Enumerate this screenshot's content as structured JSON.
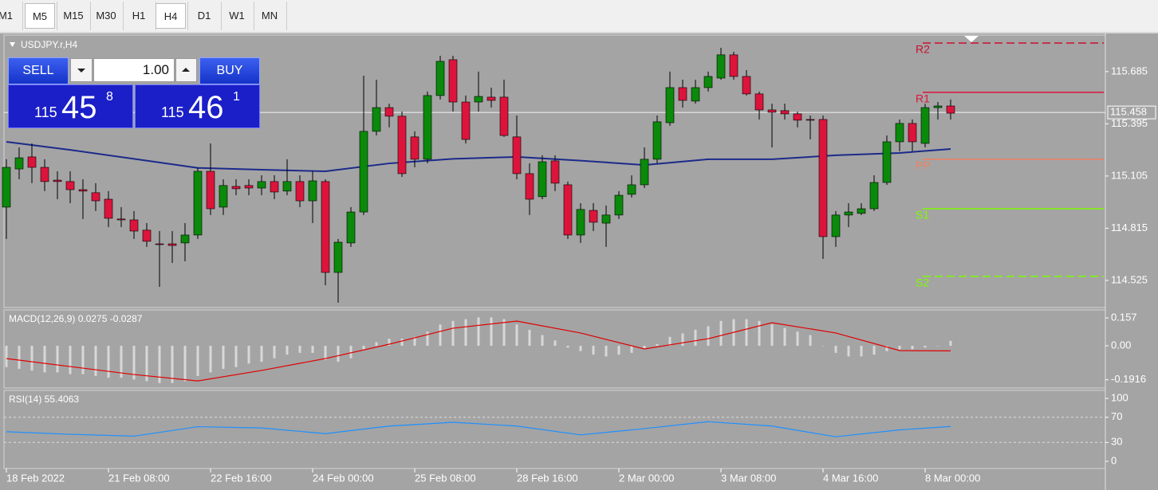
{
  "toolbar": {
    "timeframes": [
      "M1",
      "M5",
      "M15",
      "M30",
      "H1",
      "H4",
      "D1",
      "W1",
      "MN"
    ],
    "selected": [
      1,
      5
    ]
  },
  "trade_panel": {
    "sell": "SELL",
    "buy": "BUY",
    "lots": "1.00",
    "sell_price": {
      "big": "115",
      "main": "45",
      "small": "8"
    },
    "buy_price": {
      "big": "115",
      "main": "46",
      "small": "1"
    }
  },
  "chart_data": [
    {
      "type": "candlestick",
      "title": "USDJPY.r,H4",
      "categories": [
        "18 Feb 2022",
        null,
        null,
        null,
        null,
        null,
        null,
        null,
        "21 Feb 08:00",
        null,
        null,
        null,
        null,
        null,
        null,
        null,
        "22 Feb 16:00",
        null,
        null,
        null,
        null,
        null,
        null,
        null,
        "24 Feb 00:00",
        null,
        null,
        null,
        null,
        null,
        null,
        null,
        "25 Feb 08:00",
        null,
        null,
        null,
        null,
        null,
        null,
        null,
        "28 Feb 16:00",
        null,
        null,
        null,
        null,
        null,
        null,
        null,
        "2 Mar 00:00",
        null,
        null,
        null,
        null,
        null,
        null,
        null,
        "3 Mar 08:00",
        null,
        null,
        null,
        null,
        null,
        null,
        null,
        "4 Mar 16:00",
        null,
        null,
        null,
        null,
        null,
        null,
        null,
        "8 Mar 00:00",
        null,
        null
      ],
      "open": [
        114.932,
        115.144,
        115.211,
        115.153,
        115.082,
        115.074,
        115.029,
        115.012,
        114.976,
        114.866,
        114.861,
        114.804,
        114.728,
        114.728,
        114.733,
        114.777,
        115.131,
        114.932,
        115.047,
        115.052,
        115.038,
        115.074,
        115.021,
        115.074,
        114.967,
        115.074,
        114.569,
        114.733,
        114.905,
        115.353,
        115.485,
        115.437,
        115.322,
        115.198,
        115.552,
        115.751,
        115.516,
        115.516,
        115.543,
        115.543,
        115.322,
        115.118,
        114.99,
        115.189,
        115.056,
        114.777,
        114.914,
        114.843,
        114.888,
        115.003,
        115.056,
        115.198,
        115.401,
        115.596,
        115.521,
        115.596,
        115.649,
        115.778,
        115.658,
        115.561,
        115.472,
        115.468,
        115.45,
        115.419,
        115.419,
        114.768,
        114.888,
        114.897,
        114.923,
        115.069,
        115.295,
        115.397,
        115.286,
        115.485,
        115.494
      ],
      "high": [
        115.198,
        115.264,
        115.286,
        115.198,
        115.131,
        115.131,
        115.087,
        115.065,
        115.021,
        114.932,
        114.91,
        114.843,
        114.799,
        114.799,
        114.843,
        115.153,
        115.286,
        115.087,
        115.087,
        115.087,
        115.109,
        115.109,
        115.198,
        115.109,
        115.131,
        115.087,
        114.755,
        114.932,
        115.662,
        115.64,
        115.507,
        115.463,
        115.353,
        115.574,
        115.773,
        115.773,
        115.552,
        115.685,
        115.596,
        115.64,
        115.441,
        115.175,
        115.22,
        115.22,
        115.074,
        114.954,
        114.954,
        114.941,
        115.021,
        115.109,
        115.264,
        115.441,
        115.685,
        115.64,
        115.64,
        115.685,
        115.817,
        115.795,
        115.693,
        115.574,
        115.507,
        115.507,
        115.463,
        115.441,
        115.441,
        114.91,
        114.954,
        114.954,
        115.109,
        115.33,
        115.419,
        115.419,
        115.507,
        115.516,
        115.53
      ],
      "low": [
        114.755,
        115.087,
        115.065,
        115.021,
        114.976,
        114.954,
        114.866,
        114.91,
        114.821,
        114.821,
        114.755,
        114.711,
        114.489,
        114.622,
        114.631,
        114.755,
        114.888,
        114.888,
        114.998,
        114.998,
        114.998,
        114.976,
        114.998,
        114.932,
        114.843,
        114.498,
        114.401,
        114.711,
        114.888,
        115.33,
        115.375,
        115.1,
        115.153,
        115.175,
        115.53,
        115.463,
        115.286,
        115.463,
        115.485,
        115.322,
        115.087,
        114.888,
        114.976,
        115.021,
        114.755,
        114.733,
        114.799,
        114.711,
        114.866,
        114.985,
        115.038,
        115.175,
        115.384,
        115.485,
        115.507,
        115.574,
        115.64,
        115.64,
        115.552,
        115.419,
        115.264,
        115.419,
        115.375,
        115.308,
        114.644,
        114.711,
        114.821,
        114.888,
        114.91,
        115.056,
        115.242,
        115.242,
        115.264,
        115.419,
        115.419
      ],
      "close": [
        115.153,
        115.206,
        115.153,
        115.074,
        115.074,
        115.029,
        115.021,
        114.967,
        114.87,
        114.861,
        114.799,
        114.742,
        114.724,
        114.719,
        114.777,
        115.131,
        114.923,
        115.052,
        115.034,
        115.038,
        115.074,
        115.016,
        115.074,
        114.967,
        115.078,
        114.569,
        114.737,
        114.905,
        115.353,
        115.485,
        115.437,
        115.118,
        115.198,
        115.552,
        115.742,
        115.516,
        115.308,
        115.547,
        115.525,
        115.33,
        115.118,
        114.976,
        115.184,
        115.065,
        114.777,
        114.919,
        114.848,
        114.888,
        114.998,
        115.056,
        115.198,
        115.406,
        115.596,
        115.525,
        115.596,
        115.658,
        115.778,
        115.658,
        115.561,
        115.472,
        115.459,
        115.45,
        115.415,
        115.415,
        114.768,
        114.888,
        114.905,
        114.923,
        115.069,
        115.295,
        115.397,
        115.295,
        115.485,
        115.494,
        115.454
      ],
      "up_color": "#0a8a0a",
      "down_color": "#dc143c",
      "ylim": [
        114.374,
        115.888
      ],
      "yticks": [
        115.685,
        115.395,
        115.105,
        114.815,
        114.525
      ],
      "current_price": 115.458,
      "moving_average": {
        "color": "#1c2a8a",
        "x": [
          0,
          5,
          10,
          15,
          20,
          25,
          30,
          35,
          40,
          45,
          50,
          55,
          60,
          65,
          70,
          74
        ],
        "values": [
          115.295,
          115.25,
          115.2,
          115.15,
          115.14,
          115.131,
          115.175,
          115.2,
          115.211,
          115.19,
          115.166,
          115.198,
          115.198,
          115.22,
          115.233,
          115.255
        ]
      },
      "levels": [
        {
          "name": "R2",
          "value": 115.844,
          "color": "#c8102e",
          "dashed": true
        },
        {
          "name": "R1",
          "value": 115.57,
          "color": "#dc143c",
          "dashed": false
        },
        {
          "name": "PP",
          "value": 115.198,
          "color": "#f08060",
          "dashed": false
        },
        {
          "name": "S1",
          "value": 114.923,
          "color": "#7cfc00",
          "dashed": false
        },
        {
          "name": "S2",
          "value": 114.547,
          "color": "#7cfc00",
          "dashed": true
        }
      ]
    },
    {
      "type": "macd",
      "title": "MACD(12,26,9) 0.0275 -0.0287",
      "histogram": {
        "color": "#d8d8d8",
        "values": [
          -0.12,
          -0.13,
          -0.14,
          -0.15,
          -0.15,
          -0.16,
          -0.16,
          -0.17,
          -0.18,
          -0.18,
          -0.19,
          -0.2,
          -0.21,
          -0.21,
          -0.2,
          -0.17,
          -0.15,
          -0.13,
          -0.12,
          -0.1,
          -0.09,
          -0.07,
          -0.05,
          -0.04,
          -0.04,
          -0.08,
          -0.09,
          -0.07,
          -0.02,
          0.02,
          0.04,
          0.04,
          0.05,
          0.08,
          0.12,
          0.14,
          0.15,
          0.16,
          0.16,
          0.15,
          0.12,
          0.09,
          0.06,
          0.03,
          -0.01,
          -0.03,
          -0.05,
          -0.06,
          -0.05,
          -0.04,
          -0.02,
          0.01,
          0.05,
          0.07,
          0.09,
          0.11,
          0.14,
          0.15,
          0.15,
          0.14,
          0.12,
          0.1,
          0.08,
          0.06,
          0,
          -0.04,
          -0.06,
          -0.06,
          -0.05,
          -0.03,
          -0.02,
          -0.02,
          -0.01,
          0,
          0.0275
        ]
      },
      "signal_line": {
        "color": "#e00000",
        "x": [
          0,
          5,
          10,
          15,
          20,
          25,
          30,
          35,
          40,
          45,
          50,
          55,
          60,
          65,
          70,
          74
        ],
        "values": [
          -0.072,
          -0.117,
          -0.162,
          -0.198,
          -0.139,
          -0.072,
          0.009,
          0.099,
          0.139,
          0.072,
          -0.018,
          0.04,
          0.13,
          0.072,
          -0.027,
          -0.0287
        ]
      },
      "ylim": [
        -0.238,
        0.202
      ],
      "yticks": [
        0.157,
        {
          "value": 0,
          "label": "0.00"
        },
        -0.1916
      ]
    },
    {
      "type": "line",
      "title": "RSI(14) 55.4063",
      "color": "#1e90ff",
      "x": [
        0,
        5,
        10,
        15,
        20,
        25,
        30,
        35,
        40,
        45,
        50,
        55,
        60,
        65,
        70,
        74
      ],
      "values": [
        47,
        43,
        40,
        55,
        53,
        44,
        56,
        62,
        56,
        42,
        52,
        63,
        56,
        39,
        50,
        55.4063
      ],
      "ylim": [
        -11.4,
        112.7
      ],
      "yticks": [
        100,
        70,
        30,
        0
      ],
      "guide_lines": [
        70,
        30
      ]
    }
  ]
}
